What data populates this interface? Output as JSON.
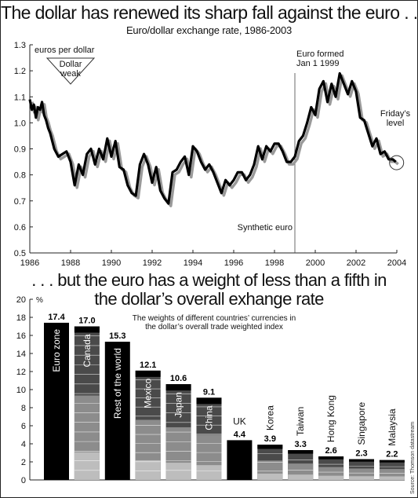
{
  "headline_top": "The dollar has renewed its sharp fall against the euro . . .",
  "subtitle_top": "Euro/dollar exchange rate, 1986-2003",
  "headline_bottom_line1": ". . . but the euro has a weight of less than a fifth in",
  "headline_bottom_line2": "the dollar’s overall exhange rate",
  "source": "Source: Thomson datastream",
  "colors": {
    "line": "#000000",
    "shadow": "#9a9a9a",
    "bar_black": "#000000",
    "bar_dark": "#4a4a4a",
    "bar_mid": "#8c8c8c",
    "bar_light": "#bdbdbd",
    "axis": "#222222"
  },
  "chart_data": [
    {
      "type": "line",
      "title": "Euro/dollar exchange rate, 1986-2003",
      "ylabel": "euros per dollar",
      "xlim": [
        1986,
        2004
      ],
      "ylim": [
        0.5,
        1.3
      ],
      "xticks": [
        1986,
        1988,
        1990,
        1992,
        1994,
        1996,
        1998,
        2000,
        2002,
        2004
      ],
      "yticks": [
        "0.5",
        "0.6",
        "0.7",
        "0.8",
        "0.9",
        "1.0",
        "1.1",
        "1.2",
        "1.3"
      ],
      "grid": false,
      "annotations": {
        "dollar_weak": [
          "Dollar",
          "weak"
        ],
        "euro_formed": [
          "Euro formed",
          "Jan 1 1999"
        ],
        "euro_formed_year": 1999,
        "synthetic_euro": "Synthetic euro",
        "fridays_level": [
          "Friday’s",
          "level"
        ]
      },
      "series": [
        {
          "x": [
            1986.0,
            1986.1,
            1986.2,
            1986.3,
            1986.4,
            1986.5,
            1986.6,
            1986.7,
            1986.8,
            1986.9,
            1987.0,
            1987.2,
            1987.4,
            1987.6,
            1987.8,
            1988.0,
            1988.2,
            1988.4,
            1988.6,
            1988.8,
            1989.0,
            1989.2,
            1989.4,
            1989.6,
            1989.8,
            1990.0,
            1990.2,
            1990.4,
            1990.6,
            1990.8,
            1991.0,
            1991.2,
            1991.4,
            1991.6,
            1991.8,
            1992.0,
            1992.2,
            1992.4,
            1992.6,
            1992.8,
            1993.0,
            1993.2,
            1993.4,
            1993.6,
            1993.8,
            1994.0,
            1994.2,
            1994.4,
            1994.6,
            1994.8,
            1995.0,
            1995.2,
            1995.4,
            1995.6,
            1995.8,
            1996.0,
            1996.2,
            1996.4,
            1996.6,
            1996.8,
            1997.0,
            1997.2,
            1997.4,
            1997.6,
            1997.8,
            1998.0,
            1998.2,
            1998.4,
            1998.6,
            1998.8,
            1999.0,
            1999.2,
            1999.4,
            1999.6,
            1999.8,
            2000.0,
            2000.2,
            2000.4,
            2000.6,
            2000.8,
            2001.0,
            2001.2,
            2001.4,
            2001.6,
            2001.8,
            2002.0,
            2002.2,
            2002.4,
            2002.6,
            2002.8,
            2003.0,
            2003.2,
            2003.4,
            2003.6,
            2003.8,
            2003.95
          ],
          "values": [
            1.09,
            1.05,
            1.07,
            1.02,
            1.06,
            1.05,
            1.08,
            1.03,
            1.01,
            0.98,
            0.96,
            0.9,
            0.87,
            0.88,
            0.89,
            0.85,
            0.76,
            0.84,
            0.8,
            0.88,
            0.9,
            0.84,
            0.9,
            0.86,
            0.94,
            0.87,
            0.93,
            0.83,
            0.82,
            0.76,
            0.73,
            0.72,
            0.84,
            0.88,
            0.84,
            0.77,
            0.83,
            0.74,
            0.71,
            0.69,
            0.81,
            0.82,
            0.85,
            0.87,
            0.8,
            0.91,
            0.89,
            0.85,
            0.82,
            0.84,
            0.81,
            0.77,
            0.73,
            0.78,
            0.76,
            0.78,
            0.81,
            0.81,
            0.78,
            0.8,
            0.84,
            0.91,
            0.86,
            0.91,
            0.89,
            0.92,
            0.92,
            0.89,
            0.85,
            0.85,
            0.87,
            0.93,
            0.95,
            1.0,
            1.06,
            1.03,
            1.13,
            1.16,
            1.08,
            1.15,
            1.1,
            1.19,
            1.15,
            1.11,
            1.16,
            1.12,
            1.02,
            1.01,
            0.96,
            0.91,
            0.94,
            0.88,
            0.89,
            0.86,
            0.86,
            0.85
          ]
        }
      ]
    },
    {
      "type": "bar",
      "title": "The weights of different countries’ currencies in the dollar’s overall trade weighted index",
      "title_lines": [
        "The weights of different countries’ currencies in",
        "the dollar’s overall trade weighted index"
      ],
      "ylabel": "%",
      "ylim": [
        0,
        20
      ],
      "yticks": [
        "0",
        "2",
        "4",
        "6",
        "8",
        "10",
        "12",
        "14",
        "16",
        "18",
        "20"
      ],
      "grid": false,
      "categories": [
        "Euro zone",
        "Canada",
        "Rest of the world",
        "Mexico",
        "Japan",
        "China",
        "UK",
        "Korea",
        "Taiwan",
        "Hong Kong",
        "Singapore",
        "Malaysia"
      ],
      "values": [
        17.4,
        17.0,
        15.3,
        12.1,
        10.6,
        9.1,
        4.4,
        3.9,
        3.3,
        2.6,
        2.3,
        2.2
      ],
      "value_labels": [
        "17.4",
        "17.0",
        "15.3",
        "12.1",
        "10.6",
        "9.1",
        "4.4",
        "3.9",
        "3.3",
        "2.6",
        "2.3",
        "2.2"
      ]
    }
  ]
}
